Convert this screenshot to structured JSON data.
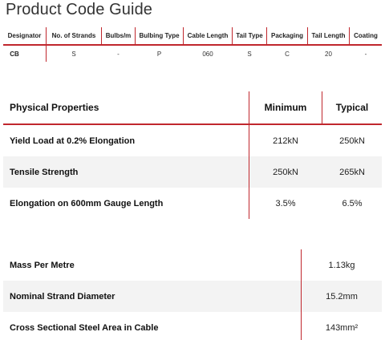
{
  "page_title": "Product Code Guide",
  "code_table": {
    "headers": [
      "Designator",
      "No. of Strands",
      "Bulbs/m",
      "Bulbing Type",
      "Cable Length",
      "Tail Type",
      "Packaging",
      "Tail Length",
      "Coating"
    ],
    "row": [
      "CB",
      "S",
      "-",
      "P",
      "060",
      "S",
      "C",
      "20",
      "-"
    ]
  },
  "physical": {
    "headers": [
      "Physical Properties",
      "Minimum",
      "Typical"
    ],
    "rows": [
      {
        "label": "Yield Load at 0.2% Elongation",
        "min": "212kN",
        "typ": "250kN"
      },
      {
        "label": "Tensile Strength",
        "min": "250kN",
        "typ": "265kN"
      },
      {
        "label": "Elongation on 600mm Gauge Length",
        "min": "3.5%",
        "typ": "6.5%"
      }
    ]
  },
  "mass": {
    "rows": [
      {
        "label": "Mass Per Metre",
        "value": "1.13kg"
      },
      {
        "label": "Nominal Strand Diameter",
        "value": "15.2mm"
      },
      {
        "label": "Cross Sectional Steel Area in Cable",
        "value": "143mm²"
      }
    ]
  },
  "colors": {
    "accent": "#c0272d",
    "row_shade": "#f3f3f3"
  }
}
